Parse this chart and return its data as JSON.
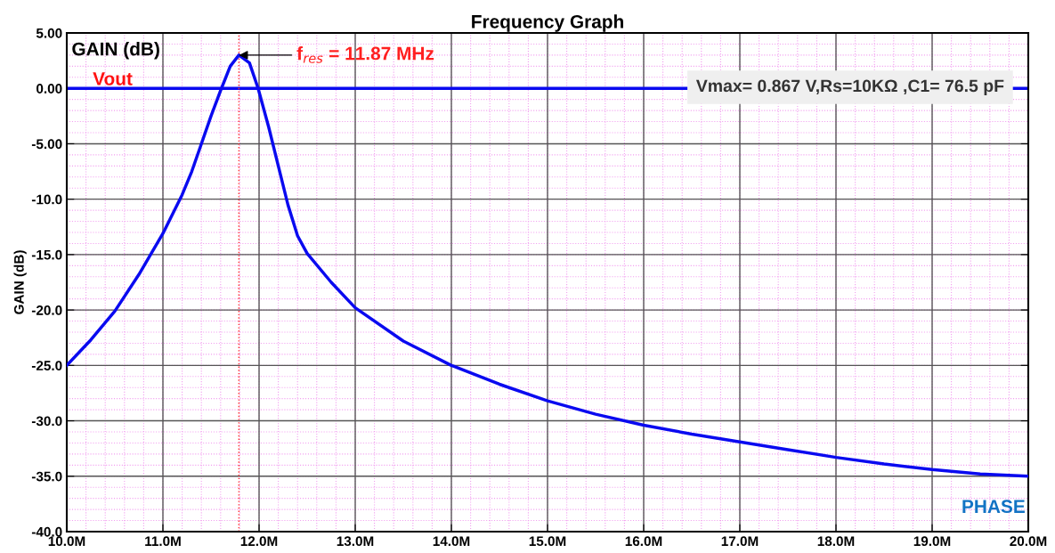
{
  "chart_data": {
    "type": "line",
    "title": "Frequency Graph",
    "ylabel": "GAIN (dB)",
    "x": [
      10.0,
      10.25,
      10.5,
      10.75,
      11.0,
      11.2,
      11.3,
      11.4,
      11.5,
      11.6,
      11.7,
      11.79,
      11.9,
      11.99,
      12.1,
      12.2,
      12.3,
      12.4,
      12.5,
      12.75,
      13.0,
      13.5,
      14.0,
      14.5,
      15.0,
      15.5,
      16.0,
      16.5,
      17.0,
      17.5,
      18.0,
      18.5,
      19.0,
      19.5,
      20.0
    ],
    "series": [
      {
        "color": "#0a0af0",
        "values": [
          -25.0,
          -22.7,
          -20.1,
          -16.8,
          -13.1,
          -9.6,
          -7.5,
          -5.0,
          -2.5,
          -0.2,
          2.0,
          3.0,
          2.3,
          0.0,
          -3.5,
          -7.0,
          -10.5,
          -13.3,
          -14.9,
          -17.5,
          -19.8,
          -22.8,
          -25.0,
          -26.7,
          -28.2,
          -29.4,
          -30.4,
          -31.2,
          -31.9,
          -32.6,
          -33.3,
          -33.9,
          -34.4,
          -34.8,
          -35.0
        ]
      }
    ],
    "xlim": [
      10.0,
      20.0
    ],
    "xticks": [
      {
        "value": 10,
        "label": "10.0M"
      },
      {
        "value": 11,
        "label": "11.0M"
      },
      {
        "value": 12,
        "label": "12.0M"
      },
      {
        "value": 13,
        "label": "13.0M"
      },
      {
        "value": 14,
        "label": "14.0M"
      },
      {
        "value": 15,
        "label": "15.0M"
      },
      {
        "value": 16,
        "label": "16.0M"
      },
      {
        "value": 17,
        "label": "17.0M"
      },
      {
        "value": 18,
        "label": "18.0M"
      },
      {
        "value": 19,
        "label": "19.0M"
      },
      {
        "value": 20,
        "label": "20.0M"
      }
    ],
    "ylim": [
      -40,
      5
    ],
    "yticks": [
      {
        "value": 5,
        "label": "5.00"
      },
      {
        "value": 0,
        "label": "0.00"
      },
      {
        "value": -5,
        "label": "-5.00"
      },
      {
        "value": -10,
        "label": "-10.0"
      },
      {
        "value": -15,
        "label": "-15.0"
      },
      {
        "value": -20,
        "label": "-20.0"
      },
      {
        "value": -25,
        "label": "-25.0"
      },
      {
        "value": -30,
        "label": "-30.0"
      },
      {
        "value": -35,
        "label": "-35.0"
      },
      {
        "value": -40,
        "label": "-40.0"
      }
    ],
    "ref_lines": [
      {
        "axis": "y",
        "value": 0,
        "color": "#0a0af0",
        "line_style": "solid"
      },
      {
        "axis": "x",
        "value": 11.79,
        "color": "#ff3030",
        "line_style": "dotted"
      }
    ],
    "annotations": [
      {
        "text": "f$_{res}$ = 11.87 MHz",
        "x": 11.79,
        "y": 3.0
      },
      "Vmax= 0.867 V,Rs=10KΩ ,C1= 76.5 pF",
      "GAIN (dB)",
      "Vout",
      "PHASE"
    ],
    "grid": true,
    "marker": "none",
    "line_style": "solid"
  }
}
